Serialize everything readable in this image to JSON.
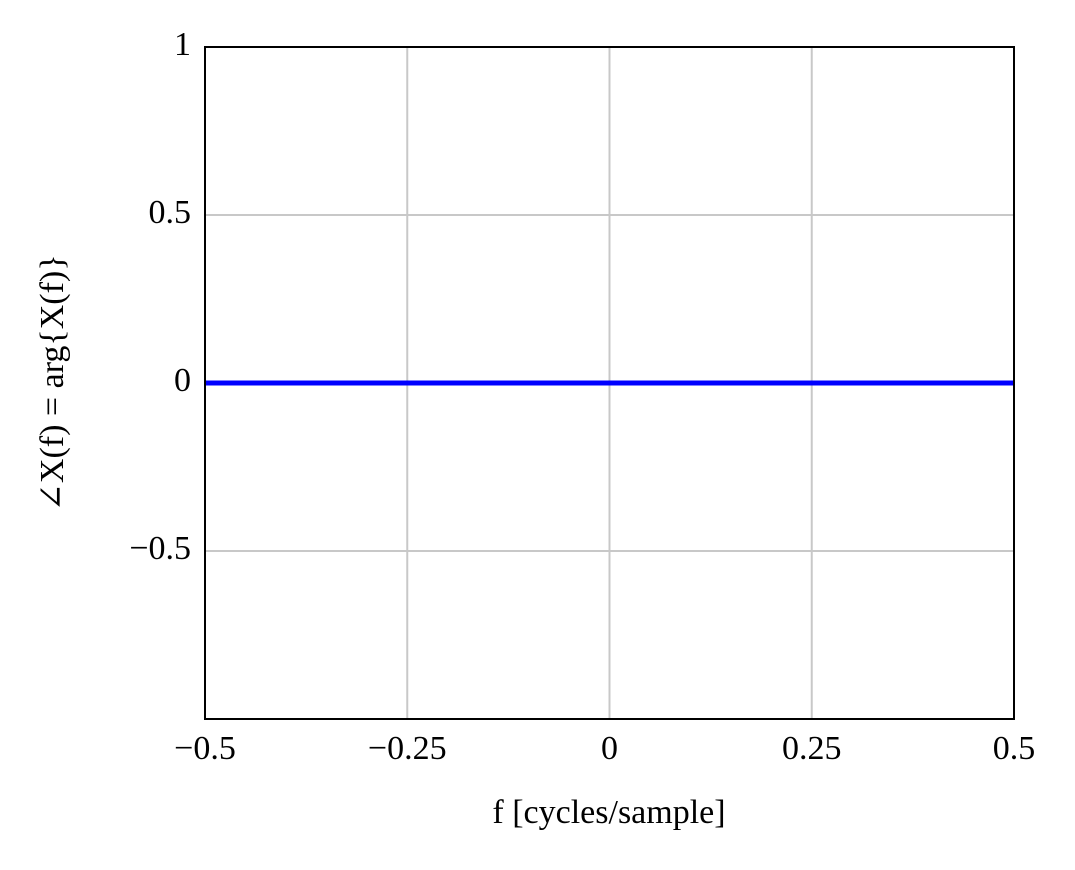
{
  "chart_data": {
    "type": "line",
    "x": [
      -0.5,
      0.5
    ],
    "series": [
      {
        "name": null,
        "color": "#0000ff",
        "values": [
          0,
          0
        ]
      }
    ],
    "xlim": [
      -0.5,
      0.5
    ],
    "ylim": [
      -1,
      1
    ],
    "xticks": [
      {
        "value": -0.5,
        "label": "−0.5"
      },
      {
        "value": -0.25,
        "label": "−0.25"
      },
      0,
      0.25,
      0.5
    ],
    "yticks": [
      {
        "value": -0.5,
        "label": "−0.5"
      },
      0,
      0.5,
      1
    ],
    "xlabel": "f  [cycles/sample]",
    "ylabel": "∠X(f) = arg{X(f)}",
    "grid": true
  }
}
